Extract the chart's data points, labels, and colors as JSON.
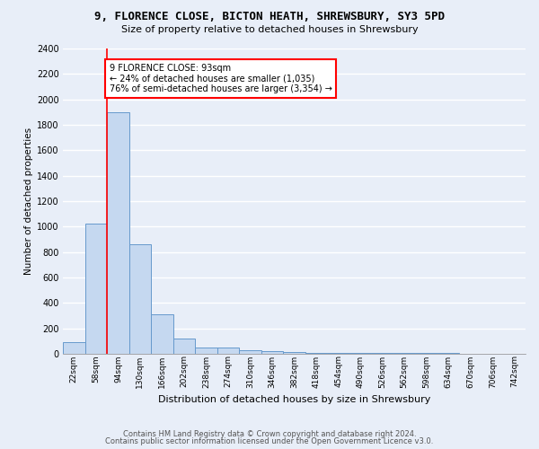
{
  "title": "9, FLORENCE CLOSE, BICTON HEATH, SHREWSBURY, SY3 5PD",
  "subtitle": "Size of property relative to detached houses in Shrewsbury",
  "xlabel": "Distribution of detached houses by size in Shrewsbury",
  "ylabel": "Number of detached properties",
  "categories": [
    "22sqm",
    "58sqm",
    "94sqm",
    "130sqm",
    "166sqm",
    "202sqm",
    "238sqm",
    "274sqm",
    "310sqm",
    "346sqm",
    "382sqm",
    "418sqm",
    "454sqm",
    "490sqm",
    "526sqm",
    "562sqm",
    "598sqm",
    "634sqm",
    "670sqm",
    "706sqm",
    "742sqm"
  ],
  "values": [
    90,
    1020,
    1900,
    860,
    310,
    120,
    50,
    48,
    30,
    20,
    12,
    8,
    6,
    5,
    4,
    4,
    3,
    3,
    2,
    2,
    1
  ],
  "bar_color": "#c5d8f0",
  "bar_edge_color": "#6699cc",
  "ylim": [
    0,
    2400
  ],
  "yticks": [
    0,
    200,
    400,
    600,
    800,
    1000,
    1200,
    1400,
    1600,
    1800,
    2000,
    2200,
    2400
  ],
  "annotation_title": "9 FLORENCE CLOSE: 93sqm",
  "annotation_line1": "← 24% of detached houses are smaller (1,035)",
  "annotation_line2": "76% of semi-detached houses are larger (3,354) →",
  "footer1": "Contains HM Land Registry data © Crown copyright and database right 2024.",
  "footer2": "Contains public sector information licensed under the Open Government Licence v3.0.",
  "bg_color": "#e8eef8",
  "grid_color": "#c8d4e8",
  "title_fontsize": 9,
  "subtitle_fontsize": 8
}
